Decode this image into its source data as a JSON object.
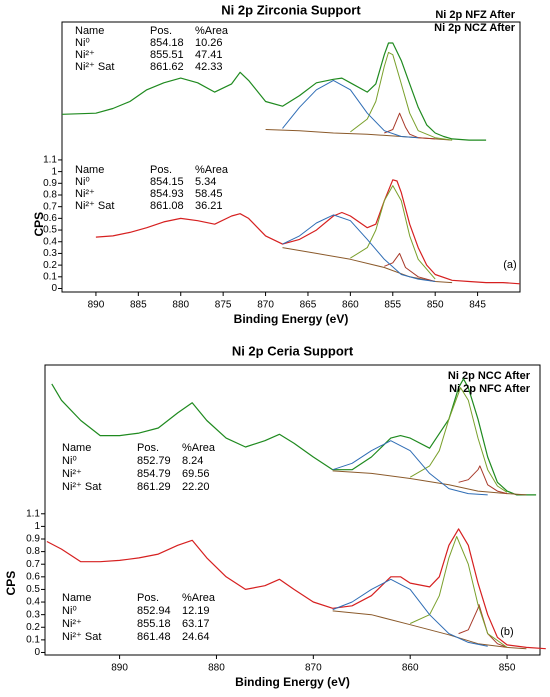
{
  "chart_data": [
    {
      "type": "line",
      "title": "Ni 2p Zirconia Support",
      "xlabel": "Binding Energy (eV)",
      "ylabel": "CPS",
      "panel_label": "(a)",
      "xlim": [
        894,
        840
      ],
      "ylim": [
        -0.03,
        2.28
      ],
      "xticks": [
        890,
        885,
        880,
        875,
        870,
        865,
        860,
        855,
        850,
        845
      ],
      "yticks": [
        0,
        0.1,
        0.2,
        0.3,
        0.4,
        0.5,
        0.6,
        0.7,
        0.8,
        0.9,
        1,
        1.1
      ],
      "series": [
        {
          "name": "Ni 2p NFZ After",
          "color": "#d62020",
          "x": [
            890,
            888,
            886,
            884,
            882,
            880,
            878,
            876,
            874,
            873,
            872,
            870,
            868,
            866,
            864,
            862,
            861,
            860,
            858,
            857,
            856,
            855,
            854.5,
            854,
            853,
            852,
            851,
            850,
            848,
            846,
            844,
            842,
            840
          ],
          "values": [
            0.44,
            0.45,
            0.48,
            0.52,
            0.57,
            0.6,
            0.58,
            0.55,
            0.62,
            0.64,
            0.6,
            0.45,
            0.38,
            0.42,
            0.5,
            0.62,
            0.65,
            0.62,
            0.52,
            0.55,
            0.75,
            0.93,
            0.92,
            0.82,
            0.55,
            0.35,
            0.2,
            0.12,
            0.07,
            0.06,
            0.05,
            0.05,
            0.04
          ]
        },
        {
          "name": "Ni 2p NCZ After",
          "color": "#1f8a1f",
          "x": [
            894,
            890,
            888,
            886,
            884,
            882,
            880,
            878,
            876,
            874,
            873,
            872,
            870,
            868,
            866,
            864,
            862,
            861,
            860,
            858,
            857,
            856,
            855.5,
            855,
            854,
            853,
            852,
            851,
            850,
            849,
            848,
            846,
            844
          ],
          "values": [
            1.49,
            1.5,
            1.54,
            1.6,
            1.7,
            1.76,
            1.8,
            1.76,
            1.68,
            1.75,
            1.85,
            1.78,
            1.6,
            1.56,
            1.65,
            1.76,
            1.79,
            1.8,
            1.76,
            1.68,
            1.75,
            2.0,
            2.1,
            2.1,
            1.95,
            1.75,
            1.55,
            1.4,
            1.33,
            1.3,
            1.28,
            1.27,
            1.27
          ]
        }
      ],
      "tables": [
        {
          "header": [
            "Name",
            "Pos.",
            "%Area"
          ],
          "rows": [
            {
              "cells": [
                "Ni⁰",
                "854.18",
                "10.26"
              ],
              "color": "#a83a2a",
              "x": [
                856,
                855,
                854.2,
                853.5,
                853,
                852,
                850
              ],
              "values": [
                1.33,
                1.36,
                1.5,
                1.38,
                1.32,
                1.29,
                1.28
              ]
            },
            {
              "cells": [
                "Ni²⁺",
                "855.51",
                "47.41"
              ],
              "color": "#7aa02c",
              "x": [
                860,
                858,
                857,
                856,
                855.5,
                855,
                854,
                853,
                852,
                850,
                848
              ],
              "values": [
                1.34,
                1.45,
                1.6,
                1.9,
                2.02,
                2.0,
                1.75,
                1.5,
                1.35,
                1.29,
                1.27
              ]
            },
            {
              "cells": [
                "Ni²⁺ Sat",
                "861.62",
                "42.33"
              ],
              "color": "#2f6db5",
              "x": [
                868,
                866,
                864,
                862,
                860,
                858,
                856,
                854,
                852
              ],
              "values": [
                1.37,
                1.55,
                1.7,
                1.78,
                1.7,
                1.5,
                1.35,
                1.3,
                1.29
              ]
            }
          ],
          "background": {
            "color": "#8b5a2b",
            "x": [
              870,
              866,
              862,
              858,
              854,
              850,
              848
            ],
            "values": [
              1.36,
              1.35,
              1.33,
              1.32,
              1.3,
              1.28,
              1.27
            ]
          }
        },
        {
          "header": [
            "Name",
            "Pos.",
            "%Area"
          ],
          "rows": [
            {
              "cells": [
                "Ni⁰",
                "854.15",
                "5.34"
              ],
              "color": "#a83a2a",
              "x": [
                856,
                855,
                854.2,
                853.5,
                852,
                850
              ],
              "values": [
                0.19,
                0.22,
                0.3,
                0.18,
                0.1,
                0.06
              ]
            },
            {
              "cells": [
                "Ni²⁺",
                "854.93",
                "58.45"
              ],
              "color": "#7aa02c",
              "x": [
                860,
                858,
                857,
                856,
                855,
                854,
                853,
                852,
                850
              ],
              "values": [
                0.26,
                0.35,
                0.5,
                0.75,
                0.88,
                0.75,
                0.45,
                0.25,
                0.08
              ]
            },
            {
              "cells": [
                "Ni²⁺ Sat",
                "861.08",
                "36.21"
              ],
              "color": "#2f6db5",
              "x": [
                868,
                866,
                864,
                862,
                860,
                858,
                856,
                854,
                852,
                850
              ],
              "values": [
                0.38,
                0.45,
                0.56,
                0.63,
                0.58,
                0.42,
                0.25,
                0.12,
                0.08,
                0.06
              ]
            }
          ],
          "background": {
            "color": "#8b5a2b",
            "x": [
              868,
              864,
              860,
              856,
              853,
              850,
              848
            ],
            "values": [
              0.35,
              0.3,
              0.25,
              0.18,
              0.1,
              0.06,
              0.05
            ]
          }
        }
      ]
    },
    {
      "type": "line",
      "title": "Ni 2p Ceria Support",
      "xlabel": "Binding Energy (eV)",
      "ylabel": "CPS",
      "panel_label": "(b)",
      "xlim": [
        897.7,
        846.6
      ],
      "ylim": [
        -0.02,
        2.28
      ],
      "xticks": [
        890,
        880,
        870,
        860,
        850
      ],
      "yticks": [
        0,
        0.1,
        0.2,
        0.3,
        0.4,
        0.5,
        0.6,
        0.7,
        0.8,
        0.9,
        1,
        1.1
      ],
      "series": [
        {
          "name": "Ni 2p NCC After",
          "color": "#d62020",
          "x": [
            897.5,
            896,
            894,
            892,
            890,
            888,
            886,
            884,
            882.5,
            881,
            879,
            877,
            875,
            873.5,
            872,
            870,
            868,
            866,
            864,
            862,
            861,
            860,
            858,
            857,
            856,
            855,
            854,
            853,
            852,
            851,
            850,
            848,
            846
          ],
          "values": [
            0.88,
            0.82,
            0.72,
            0.72,
            0.73,
            0.75,
            0.78,
            0.85,
            0.89,
            0.75,
            0.6,
            0.5,
            0.53,
            0.58,
            0.5,
            0.4,
            0.35,
            0.37,
            0.45,
            0.6,
            0.6,
            0.55,
            0.52,
            0.6,
            0.85,
            0.98,
            0.85,
            0.55,
            0.3,
            0.12,
            0.06,
            0.04,
            0.03
          ]
        },
        {
          "name": "Ni 2p NFC After",
          "color": "#1f8a1f",
          "x": [
            897,
            896,
            894,
            892,
            890,
            888,
            886,
            884,
            882.5,
            881,
            879,
            877,
            875,
            873.5,
            872,
            870,
            868,
            866,
            864,
            862,
            861,
            860,
            858,
            856,
            855,
            854.5,
            854,
            853,
            852,
            851,
            850,
            849,
            848,
            847
          ],
          "values": [
            2.13,
            2.0,
            1.84,
            1.72,
            1.72,
            1.74,
            1.78,
            1.9,
            1.98,
            1.84,
            1.7,
            1.63,
            1.68,
            1.73,
            1.66,
            1.55,
            1.45,
            1.45,
            1.55,
            1.7,
            1.72,
            1.7,
            1.62,
            1.85,
            2.1,
            2.17,
            2.1,
            1.85,
            1.55,
            1.35,
            1.28,
            1.25,
            1.25,
            1.25
          ]
        }
      ],
      "tables": [
        {
          "header": [
            "Name",
            "Pos.",
            "%Area"
          ],
          "rows": [
            {
              "cells": [
                "Ni⁰",
                "852.79",
                "8.24"
              ],
              "color": "#a83a2a",
              "x": [
                855,
                854,
                853,
                852.8,
                852,
                851,
                850
              ],
              "values": [
                1.35,
                1.37,
                1.45,
                1.48,
                1.33,
                1.28,
                1.26
              ]
            },
            {
              "cells": [
                "Ni²⁺",
                "854.79",
                "69.56"
              ],
              "color": "#7aa02c",
              "x": [
                860,
                858,
                857,
                856,
                854.8,
                854,
                853,
                852,
                851,
                850
              ],
              "values": [
                1.39,
                1.48,
                1.6,
                1.85,
                2.1,
                2.0,
                1.7,
                1.45,
                1.32,
                1.27
              ]
            },
            {
              "cells": [
                "Ni²⁺ Sat",
                "861.29",
                "22.20"
              ],
              "color": "#2f6db5",
              "x": [
                868,
                866,
                864,
                862,
                860,
                858,
                856,
                854,
                852
              ],
              "values": [
                1.45,
                1.5,
                1.6,
                1.68,
                1.6,
                1.42,
                1.3,
                1.26,
                1.25
              ]
            }
          ],
          "background": {
            "color": "#8b5a2b",
            "x": [
              868,
              864,
              860,
              856,
              853,
              850,
              848
            ],
            "values": [
              1.44,
              1.42,
              1.38,
              1.33,
              1.28,
              1.26,
              1.25
            ]
          }
        },
        {
          "header": [
            "Name",
            "Pos.",
            "%Area"
          ],
          "rows": [
            {
              "cells": [
                "Ni⁰",
                "852.94",
                "12.19"
              ],
              "color": "#a83a2a",
              "x": [
                855,
                854,
                853,
                852.9,
                852,
                851,
                850
              ],
              "values": [
                0.15,
                0.18,
                0.35,
                0.38,
                0.15,
                0.07,
                0.04
              ]
            },
            {
              "cells": [
                "Ni²⁺",
                "855.18",
                "63.17"
              ],
              "color": "#7aa02c",
              "x": [
                860,
                858,
                857,
                856,
                855.2,
                854,
                853,
                852,
                850
              ],
              "values": [
                0.23,
                0.3,
                0.45,
                0.75,
                0.92,
                0.7,
                0.38,
                0.15,
                0.04
              ]
            },
            {
              "cells": [
                "Ni²⁺ Sat",
                "861.48",
                "24.64"
              ],
              "color": "#2f6db5",
              "x": [
                868,
                866,
                864,
                862,
                860,
                858,
                856,
                854,
                852
              ],
              "values": [
                0.34,
                0.4,
                0.5,
                0.58,
                0.5,
                0.3,
                0.15,
                0.08,
                0.05
              ]
            }
          ],
          "background": {
            "color": "#8b5a2b",
            "x": [
              868,
              864,
              860,
              856,
              853,
              850,
              848
            ],
            "values": [
              0.33,
              0.3,
              0.22,
              0.14,
              0.07,
              0.04,
              0.03
            ]
          }
        }
      ]
    }
  ]
}
